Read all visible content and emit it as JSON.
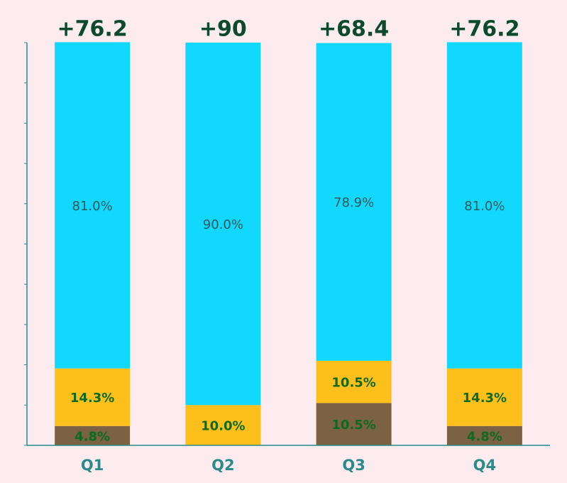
{
  "chart_data": {
    "type": "stacked_bar",
    "categories": [
      "Q1",
      "Q2",
      "Q3",
      "Q4"
    ],
    "annotations": [
      "+76.2",
      "+90",
      "+68.4",
      "+76.2"
    ],
    "series": [
      {
        "color": "#7a6242",
        "values": [
          4.8,
          0,
          10.5,
          4.8
        ],
        "value_labels": [
          "4.8%",
          null,
          "10.5%",
          "4.8%"
        ]
      },
      {
        "color": "#fdbf1b",
        "values": [
          14.3,
          10.0,
          10.5,
          14.3
        ],
        "value_labels": [
          "14.3%",
          "10.0%",
          "10.5%",
          "14.3%"
        ]
      },
      {
        "color": "#12d8fd",
        "values": [
          81.0,
          90.0,
          78.9,
          81.0
        ],
        "value_labels": [
          "81.0%",
          "90.0%",
          "78.9%",
          "81.0%"
        ]
      }
    ],
    "ylim": [
      0,
      100
    ],
    "yticks": [
      0,
      10,
      20,
      30,
      40,
      50,
      60,
      70,
      80,
      90,
      100
    ]
  }
}
